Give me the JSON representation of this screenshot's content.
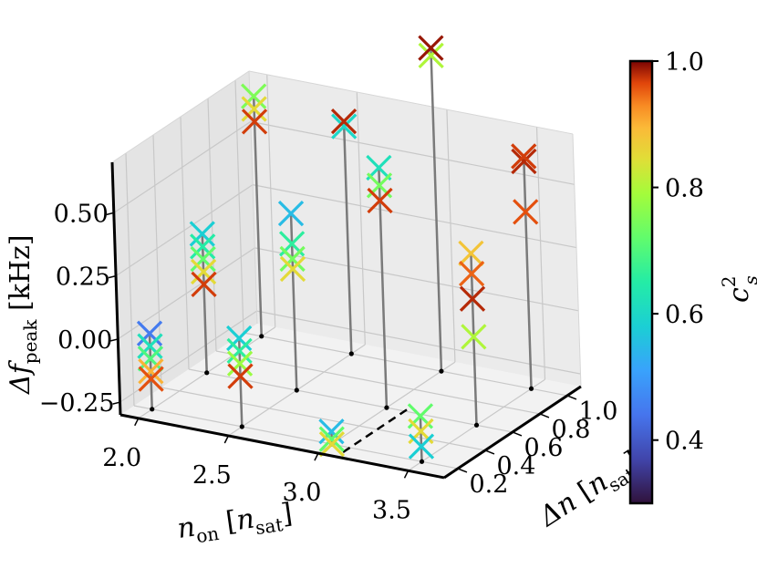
{
  "chart_data": {
    "type": "scatter",
    "projection": "3d",
    "markers": "x",
    "xlabel": {
      "base": "n",
      "base_sub": "on",
      "unit": "n",
      "unit_sub": "sat"
    },
    "ylabel": {
      "base": "Δn",
      "unit": "n",
      "unit_sub": "sat"
    },
    "zlabel": {
      "base": "Δf",
      "base_sub": "peak",
      "unit": "kHz"
    },
    "x_ticks": [
      "2.0",
      "2.5",
      "3.0",
      "3.5"
    ],
    "y_ticks": [
      "0.2",
      "0.4",
      "0.6",
      "0.8",
      "1.0"
    ],
    "z_ticks": [
      "−0.25",
      "0.00",
      "0.25",
      "0.50"
    ],
    "xlim": [
      1.9,
      3.7
    ],
    "ylim": [
      0.1,
      1.1
    ],
    "zlim": [
      -0.3,
      0.7
    ],
    "colorbar": {
      "label_base": "c",
      "label_sup": "2",
      "label_sub": "s",
      "ticks": [
        "0.4",
        "0.6",
        "0.8",
        "1.0"
      ],
      "range": [
        0.3,
        1.0
      ],
      "colormap": "turbo"
    },
    "grid": true,
    "points": [
      {
        "x": 2.0,
        "y": 0.2,
        "z": 0.0,
        "c": 0.45
      },
      {
        "x": 2.0,
        "y": 0.2,
        "z": -0.05,
        "c": 0.62
      },
      {
        "x": 2.0,
        "y": 0.2,
        "z": -0.1,
        "c": 0.7
      },
      {
        "x": 2.0,
        "y": 0.2,
        "z": -0.15,
        "c": 0.9
      },
      {
        "x": 2.0,
        "y": 0.2,
        "z": -0.18,
        "c": 0.96
      },
      {
        "x": 2.0,
        "y": 0.6,
        "z": 0.25,
        "c": 0.58
      },
      {
        "x": 2.0,
        "y": 0.6,
        "z": 0.2,
        "c": 0.65
      },
      {
        "x": 2.0,
        "y": 0.6,
        "z": 0.15,
        "c": 0.72
      },
      {
        "x": 2.0,
        "y": 0.6,
        "z": 0.1,
        "c": 0.85
      },
      {
        "x": 2.0,
        "y": 0.6,
        "z": 0.05,
        "c": 0.97
      },
      {
        "x": 2.0,
        "y": 1.0,
        "z": 0.65,
        "c": 0.75
      },
      {
        "x": 2.0,
        "y": 1.0,
        "z": 0.6,
        "c": 0.85
      },
      {
        "x": 2.0,
        "y": 1.0,
        "z": 0.55,
        "c": 0.97
      },
      {
        "x": 2.5,
        "y": 0.2,
        "z": 0.05,
        "c": 0.58
      },
      {
        "x": 2.5,
        "y": 0.2,
        "z": 0.0,
        "c": 0.66
      },
      {
        "x": 2.5,
        "y": 0.2,
        "z": -0.05,
        "c": 0.78
      },
      {
        "x": 2.5,
        "y": 0.2,
        "z": -0.1,
        "c": 0.97
      },
      {
        "x": 2.5,
        "y": 0.6,
        "z": 0.4,
        "c": 0.55
      },
      {
        "x": 2.5,
        "y": 0.6,
        "z": 0.28,
        "c": 0.66
      },
      {
        "x": 2.5,
        "y": 0.6,
        "z": 0.22,
        "c": 0.74
      },
      {
        "x": 2.5,
        "y": 0.6,
        "z": 0.18,
        "c": 0.85
      },
      {
        "x": 2.5,
        "y": 1.0,
        "z": 0.6,
        "c": 0.6
      },
      {
        "x": 2.5,
        "y": 1.0,
        "z": 0.62,
        "c": 0.98
      },
      {
        "x": 3.0,
        "y": 0.2,
        "z": -0.25,
        "c": 0.55
      },
      {
        "x": 3.0,
        "y": 0.2,
        "z": -0.28,
        "c": 0.72
      },
      {
        "x": 3.0,
        "y": 0.2,
        "z": -0.3,
        "c": 0.85
      },
      {
        "x": 3.0,
        "y": 0.6,
        "z": 0.65,
        "c": 0.62
      },
      {
        "x": 3.0,
        "y": 0.6,
        "z": 0.58,
        "c": 0.74
      },
      {
        "x": 3.0,
        "y": 0.6,
        "z": 0.52,
        "c": 0.97
      },
      {
        "x": 3.0,
        "y": 1.0,
        "z": 0.95,
        "c": 0.8
      },
      {
        "x": 3.0,
        "y": 1.0,
        "z": 0.98,
        "c": 0.99
      },
      {
        "x": 3.5,
        "y": 0.2,
        "z": -0.12,
        "c": 0.72
      },
      {
        "x": 3.5,
        "y": 0.2,
        "z": -0.18,
        "c": 0.85
      },
      {
        "x": 3.5,
        "y": 0.2,
        "z": -0.24,
        "c": 0.58
      },
      {
        "x": 3.5,
        "y": 0.6,
        "z": 0.38,
        "c": 0.88
      },
      {
        "x": 3.5,
        "y": 0.6,
        "z": 0.3,
        "c": 0.95
      },
      {
        "x": 3.5,
        "y": 0.6,
        "z": 0.2,
        "c": 0.98
      },
      {
        "x": 3.5,
        "y": 0.6,
        "z": 0.05,
        "c": 0.8
      },
      {
        "x": 3.5,
        "y": 1.0,
        "z": 0.6,
        "c": 0.98
      },
      {
        "x": 3.5,
        "y": 1.0,
        "z": 0.62,
        "c": 0.97
      },
      {
        "x": 3.5,
        "y": 1.0,
        "z": 0.4,
        "c": 0.96
      }
    ]
  }
}
